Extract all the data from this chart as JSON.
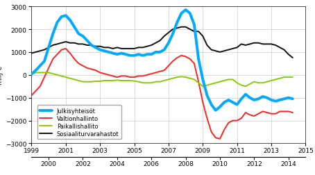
{
  "title": "",
  "ylabel": "milj €",
  "xlim": [
    1999.0,
    2015.0
  ],
  "ylim": [
    -3000,
    3000
  ],
  "yticks": [
    -3000,
    -2000,
    -1000,
    0,
    1000,
    2000,
    3000
  ],
  "xticks_major": [
    1999,
    2001,
    2003,
    2005,
    2007,
    2009,
    2011,
    2013,
    2015
  ],
  "xticks_minor": [
    2000,
    2002,
    2004,
    2006,
    2008,
    2010,
    2012,
    2014
  ],
  "legend": [
    "Julkisyhteisöt",
    "Valtionhallinto",
    "Paikallishallito",
    "Sosiaaliturvarahastot"
  ],
  "colors": [
    "#00aaff",
    "#ff2222",
    "#88cc00",
    "#111111"
  ],
  "linewidths": [
    2.8,
    1.4,
    1.4,
    1.4
  ],
  "bg_color": "#ffffff",
  "grid_color": "#cccccc",
  "julkis_x": [
    1999.0,
    1999.25,
    1999.5,
    1999.75,
    2000.0,
    2000.25,
    2000.5,
    2000.75,
    2001.0,
    2001.25,
    2001.5,
    2001.75,
    2002.0,
    2002.25,
    2002.5,
    2002.75,
    2003.0,
    2003.25,
    2003.5,
    2003.75,
    2004.0,
    2004.25,
    2004.5,
    2004.75,
    2005.0,
    2005.25,
    2005.5,
    2005.75,
    2006.0,
    2006.25,
    2006.5,
    2006.75,
    2007.0,
    2007.25,
    2007.5,
    2007.75,
    2008.0,
    2008.25,
    2008.5,
    2008.75,
    2009.0,
    2009.25,
    2009.5,
    2009.75,
    2010.0,
    2010.25,
    2010.5,
    2010.75,
    2011.0,
    2011.25,
    2011.5,
    2011.75,
    2012.0,
    2012.25,
    2012.5,
    2012.75,
    2013.0,
    2013.25,
    2013.5,
    2013.75,
    2014.0,
    2014.25
  ],
  "julkis_y": [
    30,
    200,
    400,
    600,
    1200,
    1800,
    2300,
    2550,
    2600,
    2400,
    2100,
    1800,
    1700,
    1500,
    1300,
    1200,
    1100,
    1050,
    1000,
    950,
    900,
    950,
    900,
    850,
    850,
    900,
    850,
    900,
    900,
    1000,
    1000,
    1100,
    1400,
    1800,
    2300,
    2700,
    2850,
    2700,
    2200,
    700,
    -200,
    -900,
    -1300,
    -1550,
    -1400,
    -1200,
    -1100,
    -1200,
    -1300,
    -1050,
    -850,
    -1000,
    -1100,
    -1050,
    -950,
    -1000,
    -1100,
    -1150,
    -1100,
    -1050,
    -1000,
    -1050
  ],
  "valtio_x": [
    1999.0,
    1999.25,
    1999.5,
    1999.75,
    2000.0,
    2000.25,
    2000.5,
    2000.75,
    2001.0,
    2001.25,
    2001.5,
    2001.75,
    2002.0,
    2002.25,
    2002.5,
    2002.75,
    2003.0,
    2003.25,
    2003.5,
    2003.75,
    2004.0,
    2004.25,
    2004.5,
    2004.75,
    2005.0,
    2005.25,
    2005.5,
    2005.75,
    2006.0,
    2006.25,
    2006.5,
    2006.75,
    2007.0,
    2007.25,
    2007.5,
    2007.75,
    2008.0,
    2008.25,
    2008.5,
    2008.75,
    2009.0,
    2009.25,
    2009.5,
    2009.75,
    2010.0,
    2010.25,
    2010.5,
    2010.75,
    2011.0,
    2011.25,
    2011.5,
    2011.75,
    2012.0,
    2012.25,
    2012.5,
    2012.75,
    2013.0,
    2013.25,
    2013.5,
    2013.75,
    2014.0,
    2014.25
  ],
  "valtio_y": [
    -900,
    -700,
    -500,
    -100,
    300,
    700,
    900,
    1100,
    1150,
    950,
    700,
    500,
    400,
    300,
    250,
    200,
    100,
    50,
    0,
    -50,
    -100,
    -50,
    -50,
    -100,
    -100,
    -50,
    -50,
    0,
    50,
    100,
    150,
    200,
    400,
    600,
    750,
    850,
    800,
    700,
    500,
    -300,
    -1200,
    -1900,
    -2500,
    -2750,
    -2800,
    -2400,
    -2100,
    -2000,
    -2000,
    -1900,
    -1650,
    -1750,
    -1800,
    -1700,
    -1600,
    -1650,
    -1700,
    -1700,
    -1600,
    -1600,
    -1600,
    -1650
  ],
  "paikallis_x": [
    1999.0,
    1999.25,
    1999.5,
    1999.75,
    2000.0,
    2000.25,
    2000.5,
    2000.75,
    2001.0,
    2001.25,
    2001.5,
    2001.75,
    2002.0,
    2002.25,
    2002.5,
    2002.75,
    2003.0,
    2003.25,
    2003.5,
    2003.75,
    2004.0,
    2004.25,
    2004.5,
    2004.75,
    2005.0,
    2005.25,
    2005.5,
    2005.75,
    2006.0,
    2006.25,
    2006.5,
    2006.75,
    2007.0,
    2007.25,
    2007.5,
    2007.75,
    2008.0,
    2008.25,
    2008.5,
    2008.75,
    2009.0,
    2009.25,
    2009.5,
    2009.75,
    2010.0,
    2010.25,
    2010.5,
    2010.75,
    2011.0,
    2011.25,
    2011.5,
    2011.75,
    2012.0,
    2012.25,
    2012.5,
    2012.75,
    2013.0,
    2013.25,
    2013.5,
    2013.75,
    2014.0,
    2014.25
  ],
  "paikallis_y": [
    50,
    100,
    100,
    100,
    100,
    50,
    0,
    -50,
    -100,
    -150,
    -200,
    -250,
    -300,
    -300,
    -300,
    -280,
    -280,
    -250,
    -250,
    -250,
    -230,
    -250,
    -250,
    -250,
    -270,
    -300,
    -350,
    -350,
    -350,
    -300,
    -300,
    -250,
    -200,
    -150,
    -100,
    -80,
    -100,
    -150,
    -200,
    -350,
    -500,
    -450,
    -400,
    -350,
    -300,
    -250,
    -200,
    -200,
    -350,
    -450,
    -500,
    -400,
    -300,
    -350,
    -350,
    -300,
    -250,
    -200,
    -150,
    -100,
    -100,
    -100
  ],
  "sosiaali_x": [
    1999.0,
    1999.25,
    1999.5,
    1999.75,
    2000.0,
    2000.25,
    2000.5,
    2000.75,
    2001.0,
    2001.25,
    2001.5,
    2001.75,
    2002.0,
    2002.25,
    2002.5,
    2002.75,
    2003.0,
    2003.25,
    2003.5,
    2003.75,
    2004.0,
    2004.25,
    2004.5,
    2004.75,
    2005.0,
    2005.25,
    2005.5,
    2005.75,
    2006.0,
    2006.25,
    2006.5,
    2006.75,
    2007.0,
    2007.25,
    2007.5,
    2007.75,
    2008.0,
    2008.25,
    2008.5,
    2008.75,
    2009.0,
    2009.25,
    2009.5,
    2009.75,
    2010.0,
    2010.25,
    2010.5,
    2010.75,
    2011.0,
    2011.25,
    2011.5,
    2011.75,
    2012.0,
    2012.25,
    2012.5,
    2012.75,
    2013.0,
    2013.25,
    2013.5,
    2013.75,
    2014.0,
    2014.25
  ],
  "sosiaali_y": [
    950,
    1000,
    1050,
    1100,
    1200,
    1300,
    1350,
    1400,
    1450,
    1400,
    1400,
    1350,
    1350,
    1300,
    1300,
    1250,
    1250,
    1200,
    1200,
    1150,
    1200,
    1150,
    1150,
    1150,
    1150,
    1200,
    1200,
    1250,
    1300,
    1400,
    1500,
    1700,
    1850,
    2000,
    2050,
    2100,
    2100,
    2000,
    1900,
    1900,
    1700,
    1300,
    1100,
    1050,
    1000,
    1050,
    1100,
    1150,
    1200,
    1350,
    1300,
    1350,
    1400,
    1400,
    1350,
    1350,
    1350,
    1300,
    1200,
    1100,
    900,
    750
  ]
}
